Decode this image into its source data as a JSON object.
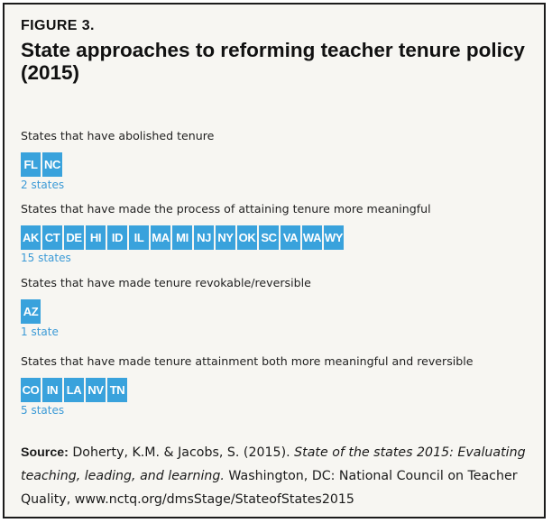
{
  "figure_label": "FIGURE 3.",
  "title": "State approaches to reforming teacher tenure policy (2015)",
  "tile_color": "#39a2dc",
  "count_color": "#3b9ad6",
  "sections": [
    {
      "label": "States that have abolished tenure",
      "states": [
        "FL",
        "NC"
      ],
      "count": "2 states"
    },
    {
      "label": "States that have made the process of attaining tenure more meaningful",
      "states": [
        "AK",
        "CT",
        "DE",
        "HI",
        "ID",
        "IL",
        "MA",
        "MI",
        "NJ",
        "NY",
        "OK",
        "SC",
        "VA",
        "WA",
        "WY"
      ],
      "count": "15 states"
    },
    {
      "label": "States that have made tenure revokable/reversible",
      "states": [
        "AZ"
      ],
      "count": "1 state"
    },
    {
      "label": "States that have made tenure attainment both more meaningful and reversible",
      "states": [
        "CO",
        "IN",
        "LA",
        "NV",
        "TN"
      ],
      "count": "5 states"
    }
  ],
  "source": {
    "label": "Source:",
    "authors": "Doherty, K.M. & Jacobs, S. (2015).",
    "work_title": "State of the states 2015: Evaluating teaching, leading, and learning.",
    "publisher": "Washington, DC: National Council on Teacher Quality, www.nctq.org/dmsStage/StateofStates2015"
  }
}
